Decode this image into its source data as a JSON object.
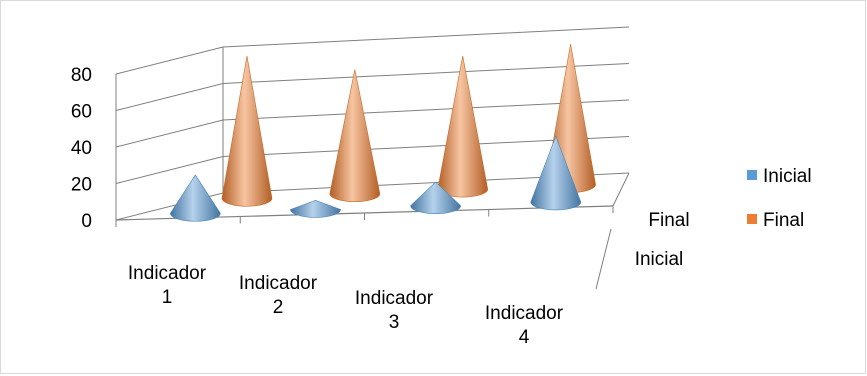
{
  "chart_data": {
    "type": "bar",
    "style": "3d-cone",
    "categories": [
      [
        "Indicador",
        "1"
      ],
      [
        "Indicador",
        "2"
      ],
      [
        "Indicador",
        "3"
      ],
      [
        "Indicador",
        "4"
      ]
    ],
    "depth_labels": [
      "Inicial",
      "Final"
    ],
    "series": [
      {
        "name": "Inicial",
        "color": "#5b9bd5",
        "values": [
          21,
          5,
          13,
          36
        ]
      },
      {
        "name": "Final",
        "color": "#ed7d31",
        "values": [
          78,
          68,
          73,
          77
        ]
      }
    ],
    "yticks": [
      0,
      20,
      40,
      60,
      80
    ],
    "ylim": [
      0,
      80
    ],
    "grid": true,
    "legend": "right",
    "title": "",
    "xlabel": "",
    "ylabel": ""
  }
}
